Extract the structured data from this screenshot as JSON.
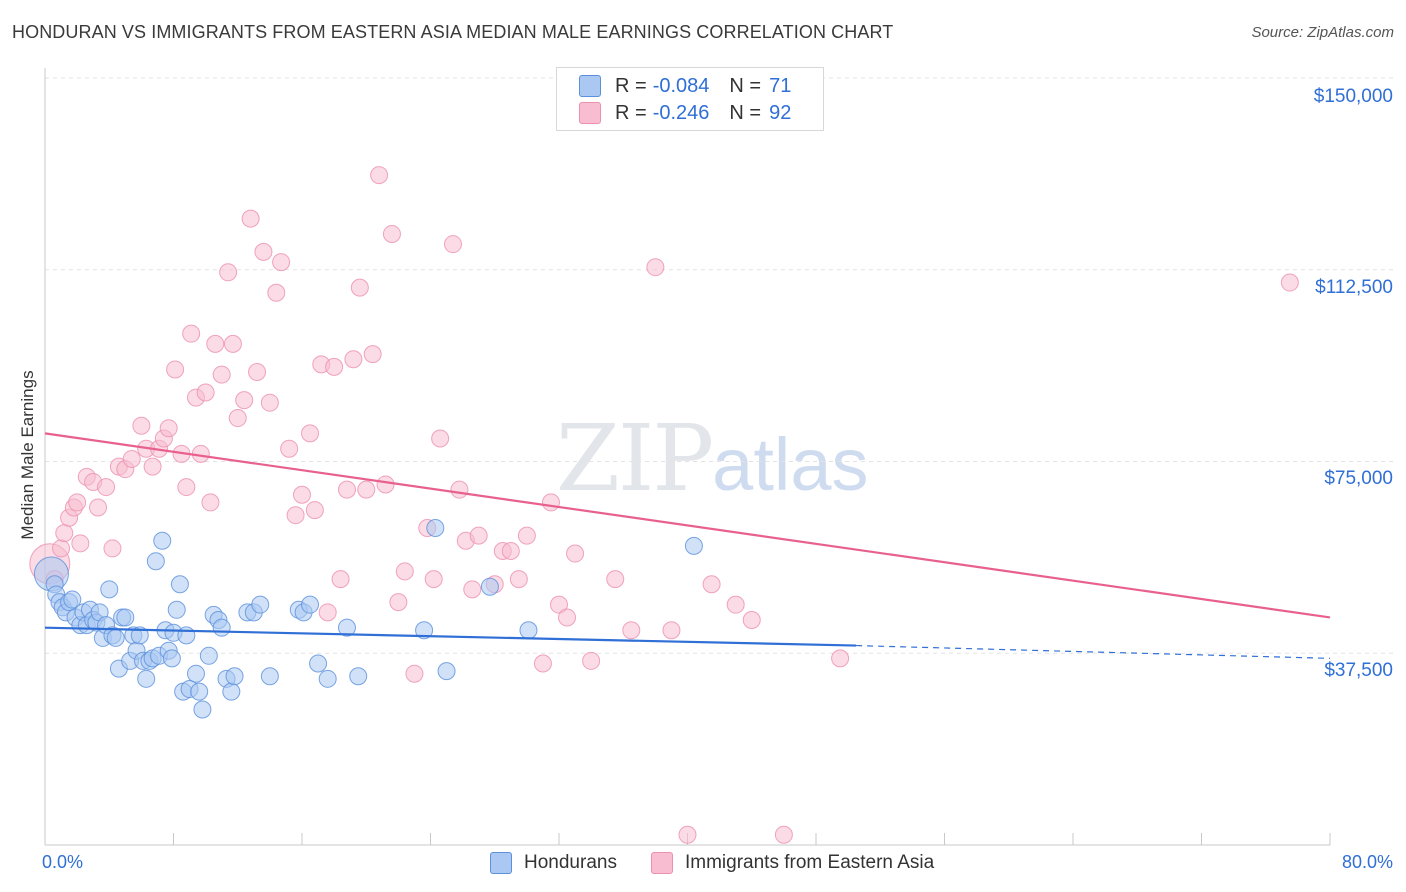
{
  "title": "HONDURAN VS IMMIGRANTS FROM EASTERN ASIA MEDIAN MALE EARNINGS CORRELATION CHART",
  "source": "Source: ZipAtlas.com",
  "watermark": {
    "zip": "ZIP",
    "atlas": "atlas"
  },
  "colors": {
    "blue_fill": "#aac8f2",
    "blue_stroke": "#5b90dc",
    "blue_line": "#2f6fd6",
    "pink_fill": "#f8bdd0",
    "pink_stroke": "#ec8fb0",
    "pink_line": "#e8608e",
    "axis_text": "#2f6fd6",
    "grid": "#e3e3e3"
  },
  "legend": {
    "rows": [
      {
        "r_label": "R = ",
        "r_value": "-0.084",
        "n_label": "N = ",
        "n_value": "71"
      },
      {
        "r_label": "R = ",
        "r_value": "-0.246",
        "n_label": "N = ",
        "n_value": "92"
      }
    ]
  },
  "bottom_legend": [
    "Hondurans",
    "Immigrants from Eastern Asia"
  ],
  "chart_data": {
    "type": "scatter",
    "title": "HONDURAN VS IMMIGRANTS FROM EASTERN ASIA MEDIAN MALE EARNINGS CORRELATION CHART",
    "xlabel": "",
    "ylabel": "Median Male Earnings",
    "xlim": [
      0,
      80
    ],
    "ylim": [
      0,
      153000
    ],
    "x_tick_labels": [
      "0.0%",
      "80.0%"
    ],
    "y_ticks": [
      37500,
      75000,
      112500,
      150000
    ],
    "y_tick_labels": [
      "$37,500",
      "$75,000",
      "$112,500",
      "$150,000"
    ],
    "grid": true,
    "series": [
      {
        "name": "Hondurans",
        "r": -0.084,
        "n": 71,
        "trend": {
          "x0": 0,
          "y0": 42500,
          "x1": 50.5,
          "y1": 39000,
          "dash_to_x": 80,
          "dash_to_y": 36500
        },
        "points": [
          [
            0.4,
            53000
          ],
          [
            0.6,
            51000
          ],
          [
            0.7,
            49000
          ],
          [
            0.9,
            47500
          ],
          [
            1.1,
            46500
          ],
          [
            1.3,
            45500
          ],
          [
            1.5,
            47500
          ],
          [
            1.7,
            48000
          ],
          [
            1.9,
            44500
          ],
          [
            2.2,
            43000
          ],
          [
            2.4,
            45500
          ],
          [
            2.6,
            43000
          ],
          [
            2.8,
            46000
          ],
          [
            3.0,
            44000
          ],
          [
            3.2,
            43500
          ],
          [
            3.4,
            45500
          ],
          [
            3.6,
            40500
          ],
          [
            3.8,
            43000
          ],
          [
            4.0,
            50000
          ],
          [
            4.2,
            41000
          ],
          [
            4.4,
            40500
          ],
          [
            4.6,
            34500
          ],
          [
            4.8,
            44500
          ],
          [
            5.0,
            44500
          ],
          [
            5.3,
            36000
          ],
          [
            5.5,
            41000
          ],
          [
            5.7,
            38000
          ],
          [
            5.9,
            41000
          ],
          [
            6.1,
            36000
          ],
          [
            6.3,
            32500
          ],
          [
            6.5,
            36000
          ],
          [
            6.7,
            36500
          ],
          [
            6.9,
            55500
          ],
          [
            7.1,
            37000
          ],
          [
            7.3,
            59500
          ],
          [
            7.5,
            42000
          ],
          [
            7.7,
            38000
          ],
          [
            7.9,
            36500
          ],
          [
            8.0,
            41500
          ],
          [
            8.2,
            46000
          ],
          [
            8.4,
            51000
          ],
          [
            8.6,
            30000
          ],
          [
            8.8,
            41000
          ],
          [
            9.0,
            30500
          ],
          [
            9.4,
            33500
          ],
          [
            9.6,
            30000
          ],
          [
            9.8,
            26500
          ],
          [
            10.2,
            37000
          ],
          [
            10.5,
            45000
          ],
          [
            10.8,
            44000
          ],
          [
            11.0,
            42500
          ],
          [
            11.3,
            32500
          ],
          [
            11.6,
            30000
          ],
          [
            11.8,
            33000
          ],
          [
            12.6,
            45500
          ],
          [
            13.0,
            45500
          ],
          [
            13.4,
            47000
          ],
          [
            14.0,
            33000
          ],
          [
            15.8,
            46000
          ],
          [
            16.1,
            45500
          ],
          [
            16.5,
            47000
          ],
          [
            17.0,
            35500
          ],
          [
            17.6,
            32500
          ],
          [
            18.8,
            42500
          ],
          [
            19.5,
            33000
          ],
          [
            23.6,
            42000
          ],
          [
            24.3,
            62000
          ],
          [
            25.0,
            34000
          ],
          [
            27.7,
            50500
          ],
          [
            30.1,
            42000
          ],
          [
            40.4,
            58500
          ]
        ]
      },
      {
        "name": "Immigrants from Eastern Asia",
        "r": -0.246,
        "n": 92,
        "trend": {
          "x0": 0,
          "y0": 80500,
          "x1": 80,
          "y1": 44500
        },
        "points": [
          [
            0.3,
            55000
          ],
          [
            0.6,
            52000
          ],
          [
            1.0,
            58000
          ],
          [
            1.2,
            61000
          ],
          [
            1.5,
            64000
          ],
          [
            1.8,
            66000
          ],
          [
            2.0,
            67000
          ],
          [
            2.2,
            59000
          ],
          [
            2.6,
            72000
          ],
          [
            3.0,
            71000
          ],
          [
            3.3,
            66000
          ],
          [
            3.8,
            70000
          ],
          [
            4.2,
            58000
          ],
          [
            4.6,
            74000
          ],
          [
            5.0,
            73500
          ],
          [
            5.4,
            75500
          ],
          [
            6.0,
            82000
          ],
          [
            6.3,
            77500
          ],
          [
            6.7,
            74000
          ],
          [
            7.1,
            77500
          ],
          [
            7.4,
            79500
          ],
          [
            7.7,
            81500
          ],
          [
            8.1,
            93000
          ],
          [
            8.5,
            76500
          ],
          [
            8.8,
            70000
          ],
          [
            9.1,
            100000
          ],
          [
            9.4,
            87500
          ],
          [
            9.7,
            76500
          ],
          [
            10.0,
            88500
          ],
          [
            10.3,
            67000
          ],
          [
            10.6,
            98000
          ],
          [
            11.0,
            92000
          ],
          [
            11.4,
            112000
          ],
          [
            11.7,
            98000
          ],
          [
            12.0,
            83500
          ],
          [
            12.4,
            87000
          ],
          [
            12.8,
            122500
          ],
          [
            13.2,
            92500
          ],
          [
            13.6,
            116000
          ],
          [
            14.0,
            86500
          ],
          [
            14.4,
            108000
          ],
          [
            14.7,
            114000
          ],
          [
            15.2,
            77500
          ],
          [
            15.6,
            64500
          ],
          [
            16.0,
            68500
          ],
          [
            16.5,
            80500
          ],
          [
            16.8,
            65500
          ],
          [
            17.2,
            94000
          ],
          [
            17.6,
            45500
          ],
          [
            18.0,
            93500
          ],
          [
            18.4,
            52000
          ],
          [
            18.8,
            69500
          ],
          [
            19.2,
            95000
          ],
          [
            19.6,
            109000
          ],
          [
            20.0,
            69500
          ],
          [
            20.4,
            96000
          ],
          [
            20.8,
            131000
          ],
          [
            21.2,
            70500
          ],
          [
            21.6,
            119500
          ],
          [
            22.0,
            47500
          ],
          [
            22.4,
            53500
          ],
          [
            23.0,
            33500
          ],
          [
            23.8,
            62000
          ],
          [
            24.2,
            52000
          ],
          [
            24.6,
            79500
          ],
          [
            25.4,
            117500
          ],
          [
            25.8,
            69500
          ],
          [
            26.2,
            59500
          ],
          [
            26.6,
            50000
          ],
          [
            27.0,
            60500
          ],
          [
            28.0,
            51000
          ],
          [
            28.5,
            57500
          ],
          [
            29.0,
            57500
          ],
          [
            29.5,
            52000
          ],
          [
            30.0,
            60500
          ],
          [
            31.0,
            35500
          ],
          [
            31.5,
            67000
          ],
          [
            32.0,
            47000
          ],
          [
            32.5,
            44500
          ],
          [
            33.0,
            57000
          ],
          [
            34.0,
            36000
          ],
          [
            35.5,
            52000
          ],
          [
            36.5,
            42000
          ],
          [
            38.0,
            113000
          ],
          [
            39.0,
            42000
          ],
          [
            40.0,
            2000
          ],
          [
            41.5,
            51000
          ],
          [
            43.0,
            47000
          ],
          [
            44.0,
            44000
          ],
          [
            46.0,
            2000
          ],
          [
            49.5,
            36500
          ],
          [
            77.5,
            110000
          ]
        ]
      }
    ]
  }
}
